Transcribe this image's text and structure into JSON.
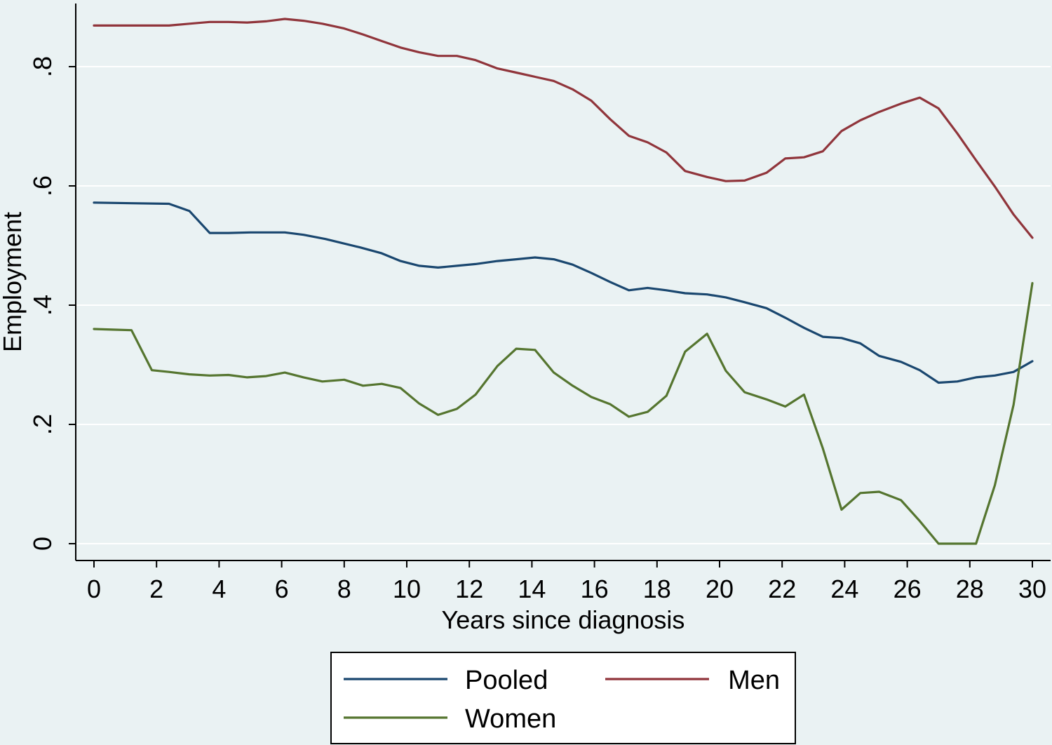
{
  "chart_data": {
    "type": "line",
    "xlabel": "Years since diagnosis",
    "ylabel": "Employment",
    "xlim": [
      0,
      30
    ],
    "ylim": [
      0,
      0.9
    ],
    "xticks": [
      0,
      2,
      4,
      6,
      8,
      10,
      12,
      14,
      16,
      18,
      20,
      22,
      24,
      26,
      28,
      30
    ],
    "xtick_labels": [
      "0",
      "2",
      "4",
      "6",
      "8",
      "10",
      "12",
      "14",
      "16",
      "18",
      "20",
      "22",
      "24",
      "26",
      "28",
      "30"
    ],
    "yticks": [
      0,
      0.2,
      0.4,
      0.6,
      0.8
    ],
    "ytick_labels": [
      "0",
      ".2",
      ".4",
      ".6",
      ".8"
    ],
    "grid": true,
    "legend_position": "bottom",
    "series": [
      {
        "name": "Pooled",
        "color": "#1a476f",
        "points": [
          [
            0,
            0.572
          ],
          [
            1.2,
            0.571
          ],
          [
            2.4,
            0.57
          ],
          [
            3.05,
            0.558
          ],
          [
            3.7,
            0.521
          ],
          [
            4.3,
            0.521
          ],
          [
            5,
            0.522
          ],
          [
            6.1,
            0.522
          ],
          [
            6.7,
            0.518
          ],
          [
            7.4,
            0.511
          ],
          [
            8.5,
            0.497
          ],
          [
            9.2,
            0.487
          ],
          [
            9.8,
            0.474
          ],
          [
            10.4,
            0.466
          ],
          [
            11,
            0.463
          ],
          [
            11.6,
            0.466
          ],
          [
            12.2,
            0.469
          ],
          [
            12.9,
            0.474
          ],
          [
            13.5,
            0.477
          ],
          [
            14.1,
            0.48
          ],
          [
            14.7,
            0.477
          ],
          [
            15.3,
            0.468
          ],
          [
            15.9,
            0.454
          ],
          [
            16.5,
            0.439
          ],
          [
            17.1,
            0.425
          ],
          [
            17.7,
            0.429
          ],
          [
            18.3,
            0.425
          ],
          [
            18.9,
            0.42
          ],
          [
            19.6,
            0.418
          ],
          [
            20.2,
            0.413
          ],
          [
            20.8,
            0.405
          ],
          [
            21.5,
            0.395
          ],
          [
            22.1,
            0.379
          ],
          [
            22.7,
            0.362
          ],
          [
            23.3,
            0.347
          ],
          [
            23.9,
            0.345
          ],
          [
            24.5,
            0.336
          ],
          [
            25.1,
            0.315
          ],
          [
            25.8,
            0.305
          ],
          [
            26.4,
            0.291
          ],
          [
            27,
            0.27
          ],
          [
            27.6,
            0.272
          ],
          [
            28.2,
            0.279
          ],
          [
            28.8,
            0.282
          ],
          [
            29.4,
            0.288
          ],
          [
            30,
            0.306
          ]
        ]
      },
      {
        "name": "Men",
        "color": "#90353b",
        "points": [
          [
            0,
            0.869
          ],
          [
            1.2,
            0.869
          ],
          [
            2.4,
            0.869
          ],
          [
            3.05,
            0.872
          ],
          [
            3.7,
            0.875
          ],
          [
            4.3,
            0.875
          ],
          [
            4.9,
            0.874
          ],
          [
            5.5,
            0.876
          ],
          [
            6.1,
            0.88
          ],
          [
            6.7,
            0.877
          ],
          [
            7.3,
            0.872
          ],
          [
            8,
            0.864
          ],
          [
            8.6,
            0.854
          ],
          [
            9.2,
            0.843
          ],
          [
            9.8,
            0.832
          ],
          [
            10.4,
            0.824
          ],
          [
            11,
            0.818
          ],
          [
            11.6,
            0.818
          ],
          [
            12.2,
            0.811
          ],
          [
            12.9,
            0.797
          ],
          [
            13.5,
            0.79
          ],
          [
            14.1,
            0.783
          ],
          [
            14.7,
            0.776
          ],
          [
            15.3,
            0.762
          ],
          [
            15.9,
            0.743
          ],
          [
            16.5,
            0.712
          ],
          [
            17.1,
            0.684
          ],
          [
            17.7,
            0.673
          ],
          [
            18.3,
            0.656
          ],
          [
            18.9,
            0.625
          ],
          [
            19.6,
            0.615
          ],
          [
            20.2,
            0.608
          ],
          [
            20.8,
            0.609
          ],
          [
            21.5,
            0.622
          ],
          [
            22.1,
            0.646
          ],
          [
            22.7,
            0.648
          ],
          [
            23.3,
            0.658
          ],
          [
            23.9,
            0.692
          ],
          [
            24.5,
            0.71
          ],
          [
            25.1,
            0.724
          ],
          [
            25.8,
            0.738
          ],
          [
            26.4,
            0.748
          ],
          [
            27,
            0.73
          ],
          [
            27.6,
            0.688
          ],
          [
            28.2,
            0.643
          ],
          [
            28.8,
            0.599
          ],
          [
            29.4,
            0.552
          ],
          [
            30,
            0.513
          ]
        ]
      },
      {
        "name": "Women",
        "color": "#55752f",
        "points": [
          [
            0,
            0.36
          ],
          [
            0.6,
            0.359
          ],
          [
            1.2,
            0.358
          ],
          [
            1.85,
            0.291
          ],
          [
            2.4,
            0.288
          ],
          [
            3.05,
            0.284
          ],
          [
            3.7,
            0.282
          ],
          [
            4.3,
            0.283
          ],
          [
            4.9,
            0.279
          ],
          [
            5.5,
            0.281
          ],
          [
            6.1,
            0.287
          ],
          [
            6.7,
            0.279
          ],
          [
            7.3,
            0.272
          ],
          [
            8,
            0.275
          ],
          [
            8.6,
            0.265
          ],
          [
            9.2,
            0.268
          ],
          [
            9.8,
            0.261
          ],
          [
            10.4,
            0.235
          ],
          [
            11,
            0.216
          ],
          [
            11.6,
            0.226
          ],
          [
            12.2,
            0.25
          ],
          [
            12.9,
            0.298
          ],
          [
            13.5,
            0.327
          ],
          [
            14.1,
            0.325
          ],
          [
            14.7,
            0.287
          ],
          [
            15.3,
            0.265
          ],
          [
            15.9,
            0.246
          ],
          [
            16.5,
            0.234
          ],
          [
            17.1,
            0.213
          ],
          [
            17.7,
            0.221
          ],
          [
            18.3,
            0.248
          ],
          [
            18.9,
            0.322
          ],
          [
            19.6,
            0.352
          ],
          [
            20.2,
            0.29
          ],
          [
            20.8,
            0.254
          ],
          [
            21.5,
            0.242
          ],
          [
            22.1,
            0.23
          ],
          [
            22.7,
            0.25
          ],
          [
            23.3,
            0.16
          ],
          [
            23.9,
            0.057
          ],
          [
            24.5,
            0.085
          ],
          [
            25.1,
            0.087
          ],
          [
            25.8,
            0.073
          ],
          [
            26.4,
            0.038
          ],
          [
            27,
            0.0
          ],
          [
            27.6,
            0.0
          ],
          [
            28.2,
            0.0
          ],
          [
            28.8,
            0.098
          ],
          [
            29.4,
            0.233
          ],
          [
            30,
            0.437
          ]
        ]
      }
    ],
    "legend": {
      "items": [
        {
          "label": "Pooled",
          "series": 0
        },
        {
          "label": "Men",
          "series": 1
        },
        {
          "label": "Women",
          "series": 2
        }
      ]
    }
  }
}
